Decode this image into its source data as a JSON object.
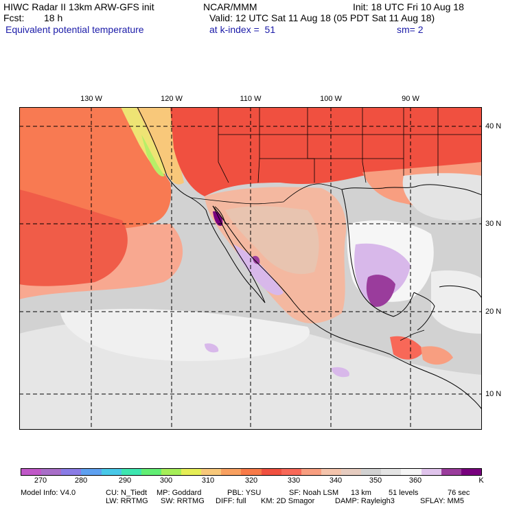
{
  "header": {
    "line1_left": "HIWC Radar II 13km ARW-GFS init",
    "line1_mid": "NCAR/MMM",
    "line1_right": "Init: 18 UTC Fri 10 Aug 18",
    "fcst_label": "Fcst:",
    "fcst_value": "18 h",
    "valid": "Valid: 12 UTC Sat 11 Aug 18 (05 PDT Sat 11 Aug 18)",
    "field": "Equivalent potential temperature",
    "level": "at k-index =  51",
    "smoothing": "sm= 2"
  },
  "map": {
    "lon_labels": [
      "130 W",
      "120 W",
      "110 W",
      "100 W",
      "90 W"
    ],
    "lat_labels": [
      "40 N",
      "30 N",
      "20 N",
      "10 N"
    ]
  },
  "colorbar": {
    "colors": [
      "#c058c8",
      "#a86ec8",
      "#8a7ce6",
      "#5ea0f0",
      "#48c8e8",
      "#3ee6b0",
      "#62ee74",
      "#a6ee58",
      "#e6ee56",
      "#f8c87a",
      "#f8a060",
      "#f87a48",
      "#f05040",
      "#f86858",
      "#f89e80",
      "#f4c4ac",
      "#e6ccc0",
      "#d2d2d2",
      "#e4e4e4",
      "#f6f6f6",
      "#e0c4ec",
      "#9a3c9c",
      "#78007e"
    ],
    "ticks": [
      "270",
      "280",
      "290",
      "300",
      "310",
      "320",
      "330",
      "340",
      "350",
      "360",
      "K"
    ]
  },
  "footer": {
    "line1": [
      "Model Info: V4.0",
      "CU: N_Tiedt",
      "MP: Goddard",
      "PBL: YSU",
      "SF: Noah LSM",
      "13 km",
      "51 levels",
      "76 sec"
    ],
    "line2": [
      "LW: RRTMG",
      "SW: RRTMG",
      "DIFF: full",
      "KM: 2D Smagor",
      "DAMP: Rayleigh3",
      "SFLAY: MM5"
    ]
  }
}
